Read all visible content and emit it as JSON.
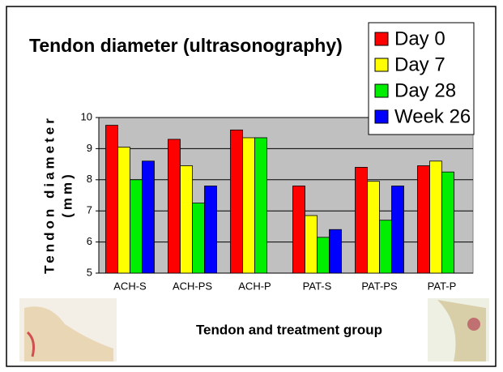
{
  "chart_data": {
    "type": "bar",
    "title": "Tendon diameter (ultrasonography)",
    "y_label": [
      "Tendon diameter",
      "(mm)"
    ],
    "x_label": "Tendon and treatment group",
    "categories": [
      "ACH-S",
      "ACH-PS",
      "ACH-P",
      "PAT-S",
      "PAT-PS",
      "PAT-P"
    ],
    "series": [
      {
        "name": "Day 0",
        "color": "#ff0000",
        "values": [
          9.75,
          9.3,
          9.6,
          7.8,
          8.4,
          8.45
        ]
      },
      {
        "name": "Day 7",
        "color": "#ffff00",
        "values": [
          9.05,
          8.45,
          9.35,
          6.85,
          7.95,
          8.6
        ]
      },
      {
        "name": "Day 28",
        "color": "#00ee00",
        "values": [
          8.0,
          7.25,
          9.35,
          6.15,
          6.7,
          8.25
        ]
      },
      {
        "name": "Week 26",
        "color": "#0000ff",
        "values": [
          8.6,
          7.8,
          null,
          6.4,
          7.8,
          null
        ]
      }
    ],
    "ylim": [
      5,
      10
    ],
    "yticks": [
      5,
      6,
      7,
      8,
      9,
      10
    ],
    "grid": true,
    "legend": "top-right"
  }
}
